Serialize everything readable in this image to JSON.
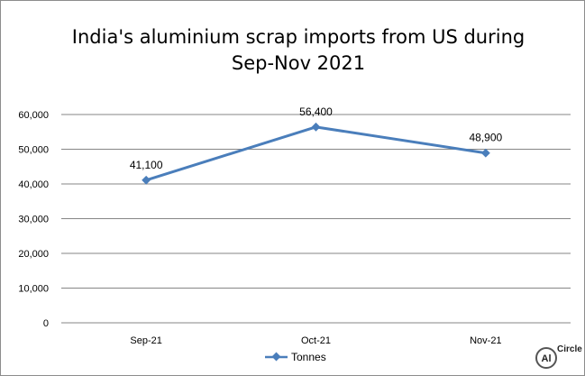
{
  "chart_data": {
    "type": "line",
    "title": [
      "India's aluminium scrap imports from US during",
      "Sep-Nov 2021"
    ],
    "categories": [
      "Sep-21",
      "Oct-21",
      "Nov-21"
    ],
    "series": [
      {
        "name": "Tonnes",
        "values": [
          41100,
          56400,
          48900
        ],
        "color": "#4a7ebb"
      }
    ],
    "data_labels": [
      "41,100",
      "56,400",
      "48,900"
    ],
    "y_ticks": [
      "0",
      "10,000",
      "20,000",
      "30,000",
      "40,000",
      "50,000",
      "60,000"
    ],
    "ylim": [
      0,
      60000
    ],
    "grid": true,
    "legend_position": "bottom"
  },
  "logo": {
    "mark": "Al",
    "name": "Circle"
  }
}
